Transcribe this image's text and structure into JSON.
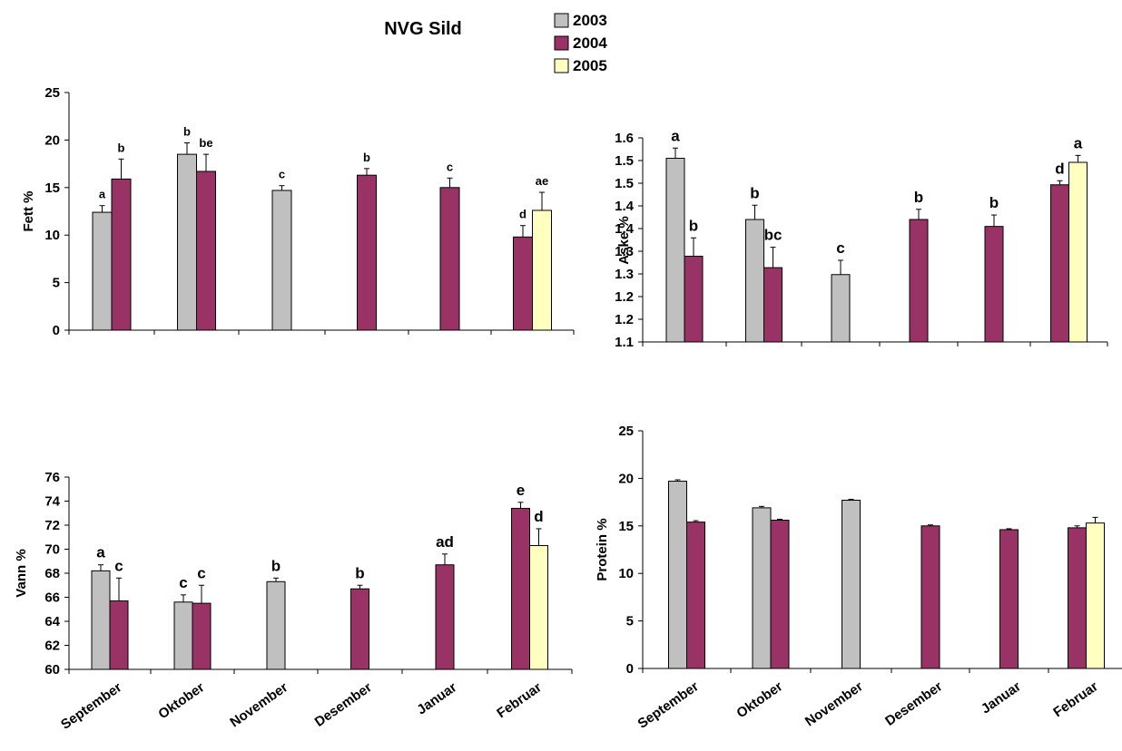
{
  "title": "NVG Sild",
  "legend": {
    "entries": [
      {
        "name": "2003",
        "color": "#c0c0c0"
      },
      {
        "name": "2004",
        "color": "#993366"
      },
      {
        "name": "2005",
        "color": "#ffffc0"
      }
    ]
  },
  "chart_data": [
    {
      "type": "bar",
      "ylabel": "Fett %",
      "categories": [
        "September",
        "Oktober",
        "November",
        "Desember",
        "Januar",
        "Februar"
      ],
      "ylim": [
        0,
        25
      ],
      "yticks": [
        "0",
        "5",
        "10",
        "15",
        "20",
        "25"
      ],
      "series": [
        {
          "name": "2003",
          "values": [
            12.4,
            18.5,
            14.7,
            null,
            null,
            null
          ],
          "errors": [
            0.7,
            1.2,
            0.5,
            null,
            null,
            null
          ],
          "labels": [
            "a",
            "b",
            "c",
            null,
            null,
            null
          ]
        },
        {
          "name": "2004",
          "values": [
            15.9,
            16.7,
            null,
            16.3,
            15.0,
            9.8
          ],
          "errors": [
            2.1,
            1.8,
            null,
            0.7,
            1.0,
            1.2
          ],
          "labels": [
            "b",
            "be",
            null,
            "b",
            "c",
            "d"
          ]
        },
        {
          "name": "2005",
          "values": [
            null,
            null,
            null,
            null,
            null,
            12.6
          ],
          "errors": [
            null,
            null,
            null,
            null,
            null,
            1.9
          ],
          "labels": [
            null,
            null,
            null,
            null,
            null,
            "ae"
          ]
        }
      ]
    },
    {
      "type": "bar",
      "ylabel": "Aske %",
      "categories": [
        "September",
        "Oktober",
        "November",
        "Desember",
        "Januar",
        "Februar"
      ],
      "ylim": [
        1.1,
        1.6
      ],
      "yticks": [
        "1.1",
        "1.2",
        "1.2",
        "1.3",
        "1.3",
        "1.4",
        "1.4",
        "1.5",
        "1.5",
        "1.6"
      ],
      "series": [
        {
          "name": "2003",
          "values": [
            1.55,
            1.4,
            1.265,
            null,
            null,
            null
          ],
          "errors": [
            0.025,
            0.035,
            0.035,
            null,
            null,
            null
          ],
          "labels": [
            "a",
            "b",
            "c",
            null,
            null,
            null
          ]
        },
        {
          "name": "2004",
          "values": [
            1.31,
            1.282,
            null,
            1.4,
            1.383,
            1.485
          ],
          "errors": [
            0.045,
            0.05,
            null,
            0.025,
            0.028,
            0.01
          ],
          "labels": [
            "b",
            "bc",
            null,
            "b",
            "b",
            "d"
          ]
        },
        {
          "name": "2005",
          "values": [
            null,
            null,
            null,
            null,
            null,
            1.54
          ],
          "errors": [
            null,
            null,
            null,
            null,
            null,
            0.017
          ],
          "labels": [
            null,
            null,
            null,
            null,
            null,
            "a"
          ]
        }
      ]
    },
    {
      "type": "bar",
      "ylabel": "Vann %",
      "categories": [
        "September",
        "Oktober",
        "November",
        "Desember",
        "Januar",
        "Februar"
      ],
      "ylim": [
        60,
        76
      ],
      "yticks": [
        "60",
        "62",
        "64",
        "66",
        "68",
        "70",
        "72",
        "74",
        "76"
      ],
      "series": [
        {
          "name": "2003",
          "values": [
            68.2,
            65.6,
            67.3,
            null,
            null,
            null
          ],
          "errors": [
            0.5,
            0.6,
            0.3,
            null,
            null,
            null
          ],
          "labels": [
            "a",
            "c",
            "b",
            null,
            null,
            null
          ]
        },
        {
          "name": "2004",
          "values": [
            65.7,
            65.5,
            null,
            66.7,
            68.7,
            73.4
          ],
          "errors": [
            1.9,
            1.5,
            null,
            0.3,
            0.9,
            0.5
          ],
          "labels": [
            "c",
            "c",
            null,
            "b",
            "ad",
            "e"
          ]
        },
        {
          "name": "2005",
          "values": [
            null,
            null,
            null,
            null,
            null,
            70.3
          ],
          "errors": [
            null,
            null,
            null,
            null,
            null,
            1.4
          ],
          "labels": [
            null,
            null,
            null,
            null,
            null,
            "d"
          ]
        }
      ]
    },
    {
      "type": "bar",
      "ylabel": "Protein %",
      "categories": [
        "September",
        "Oktober",
        "November",
        "Desember",
        "Januar",
        "Februar"
      ],
      "ylim": [
        0,
        25
      ],
      "yticks": [
        "0",
        "5",
        "10",
        "15",
        "20",
        "25"
      ],
      "series": [
        {
          "name": "2003",
          "values": [
            19.7,
            16.9,
            17.7,
            null,
            null,
            null
          ],
          "errors": [
            0.15,
            0.15,
            0.1,
            null,
            null,
            null
          ],
          "labels": [
            null,
            null,
            null,
            null,
            null,
            null
          ]
        },
        {
          "name": "2004",
          "values": [
            15.4,
            15.6,
            null,
            15.0,
            14.6,
            14.8
          ],
          "errors": [
            0.15,
            0.1,
            null,
            0.1,
            0.1,
            0.2
          ],
          "labels": [
            null,
            null,
            null,
            null,
            null,
            null
          ]
        },
        {
          "name": "2005",
          "values": [
            null,
            null,
            null,
            null,
            null,
            15.3
          ],
          "errors": [
            null,
            null,
            null,
            null,
            null,
            0.6
          ],
          "labels": [
            null,
            null,
            null,
            null,
            null,
            null
          ]
        }
      ]
    }
  ]
}
